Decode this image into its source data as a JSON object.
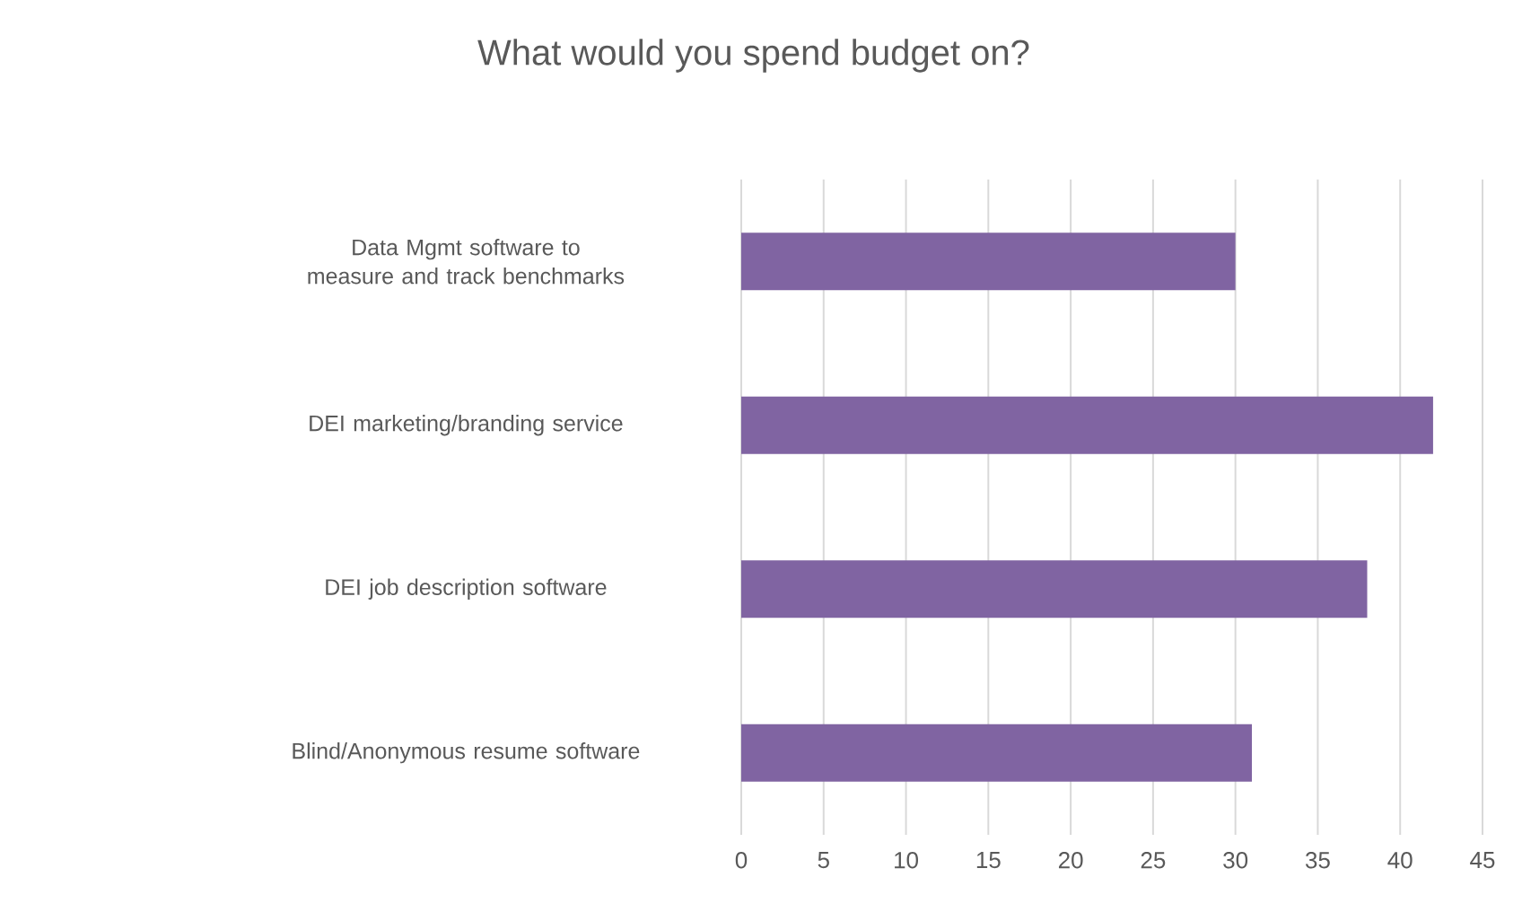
{
  "chart_data": {
    "type": "bar",
    "orientation": "horizontal",
    "title": "What would you spend budget on?",
    "categories": [
      "Data Mgmt software to measure and track benchmarks",
      "DEI marketing/branding service",
      "DEI job description software",
      "Blind/Anonymous resume software"
    ],
    "values": [
      30,
      42,
      38,
      31
    ],
    "color": "#8064a2",
    "xlim": [
      0,
      45
    ],
    "xticks": [
      0,
      5,
      10,
      15,
      20,
      25,
      30,
      35,
      40,
      45
    ],
    "grid": "x"
  }
}
